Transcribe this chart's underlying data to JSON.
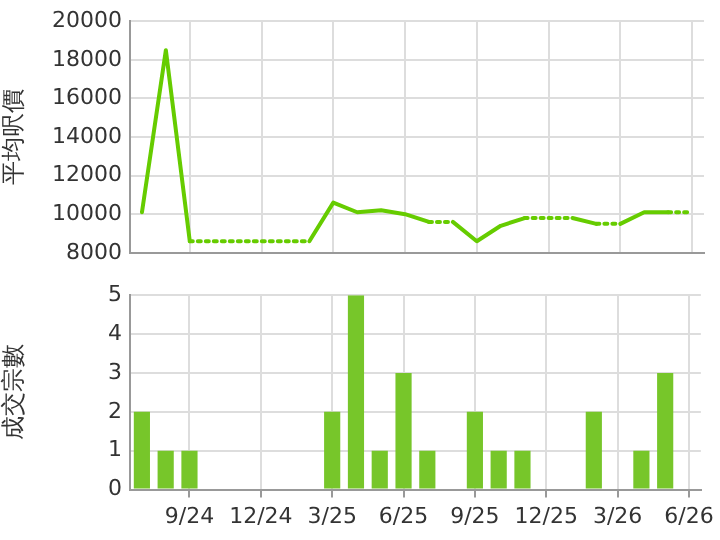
{
  "chart_data": [
    {
      "type": "line",
      "ylabel": "平均呎價",
      "ylim": [
        8000,
        20000
      ],
      "yticks": [
        8000,
        10000,
        12000,
        14000,
        16000,
        18000,
        20000
      ],
      "grid": true,
      "tick_labels": "y",
      "legend": false,
      "marker": "none",
      "series": [
        {
          "color": "#66cc00",
          "values": [
            10100,
            18500,
            8600,
            8600,
            8600,
            8600,
            8600,
            8600,
            10600,
            10100,
            10200,
            10000,
            9600,
            9600,
            8600,
            9400,
            9800,
            9800,
            9800,
            9500,
            9500,
            10100,
            10100,
            10100
          ]
        }
      ]
    },
    {
      "type": "bar",
      "ylabel": "成交宗數",
      "categories": [
        null,
        null,
        "9/24",
        null,
        null,
        "12/24",
        null,
        null,
        "3/25",
        null,
        null,
        "6/25",
        null,
        null,
        "9/25",
        null,
        null,
        "12/25",
        null,
        null,
        "3/26",
        null,
        null,
        "6/26"
      ],
      "ylim": [
        0,
        5
      ],
      "yticks": [
        0,
        1,
        2,
        3,
        4,
        5
      ],
      "grid": true,
      "legend": false,
      "series": [
        {
          "color": "#77c62a",
          "values": [
            2,
            1,
            1,
            0,
            0,
            0,
            0,
            0,
            2,
            5,
            1,
            3,
            1,
            0,
            2,
            1,
            1,
            0,
            0,
            2,
            0,
            1,
            3,
            0
          ]
        }
      ]
    }
  ]
}
